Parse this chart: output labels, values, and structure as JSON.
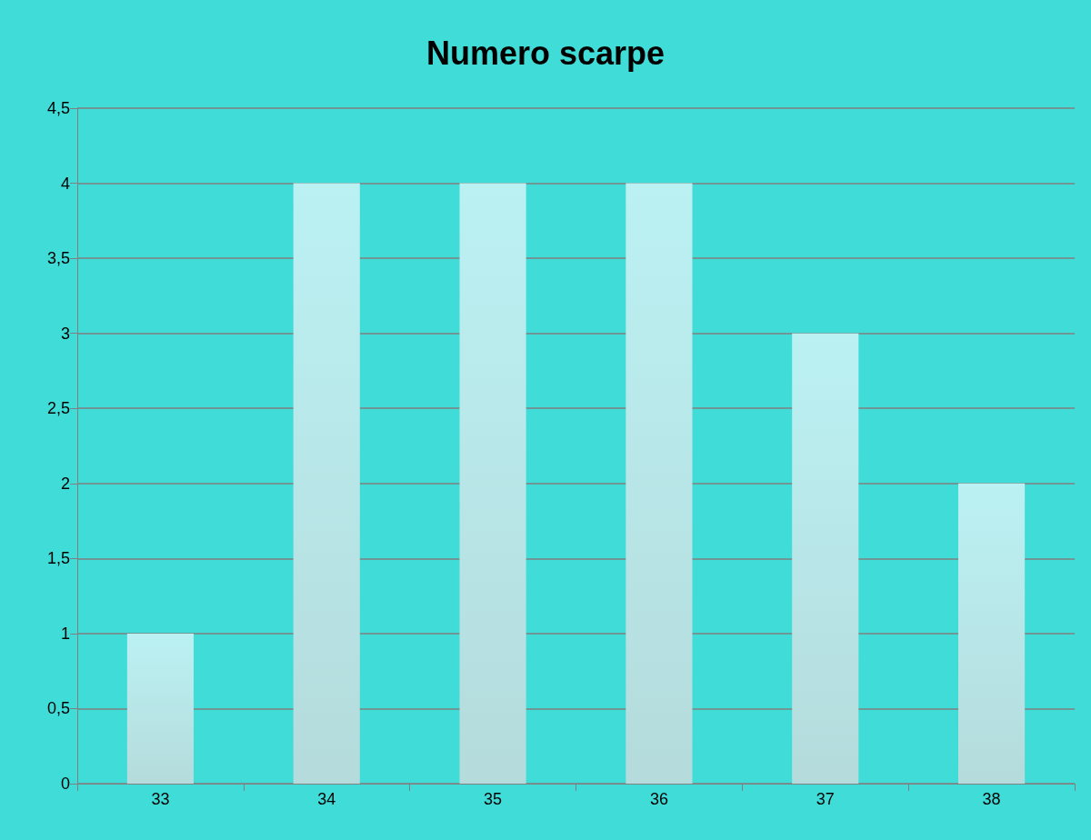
{
  "chart_data": {
    "type": "bar",
    "title": "Numero scarpe",
    "categories": [
      "33",
      "34",
      "35",
      "36",
      "37",
      "38"
    ],
    "values": [
      1,
      4,
      4,
      4,
      3,
      2
    ],
    "color": "#a3d2d4",
    "ylim": [
      0,
      4.5
    ],
    "yticks": [
      0,
      {
        "value": 0.5,
        "label": "0,5"
      },
      1,
      {
        "value": 1.5,
        "label": "1,5"
      },
      2,
      {
        "value": 2.5,
        "label": "2,5"
      },
      3,
      {
        "value": 3.5,
        "label": "3,5"
      },
      4,
      {
        "value": 4.5,
        "label": "4,5"
      }
    ],
    "grid": "y"
  }
}
